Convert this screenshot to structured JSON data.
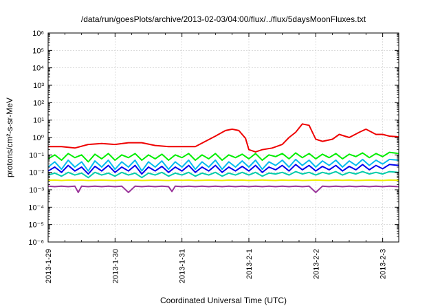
{
  "chart_data": {
    "type": "line",
    "title": "/data/run/goesPlots/archive/2013-02-03/04:00/flux/../flux/5daysMoonFluxes.txt",
    "xlabel": "Coordinated Universal Time (UTC)",
    "ylabel": "protons/cm²-s-sr-MeV",
    "y_scale": "log",
    "ylim": [
      1e-06,
      1000000.0
    ],
    "xlim": [
      0,
      5.24
    ],
    "x_ticks": [
      {
        "value": 0,
        "label": "2013-1-29"
      },
      {
        "value": 1,
        "label": "2013-1-30"
      },
      {
        "value": 2,
        "label": "2013-1-31"
      },
      {
        "value": 3,
        "label": "2013-2-1"
      },
      {
        "value": 4,
        "label": "2013-2-2"
      },
      {
        "value": 5,
        "label": "2013-2-3"
      }
    ],
    "y_ticks": [
      {
        "value": -6,
        "label": "10⁻⁶"
      },
      {
        "value": -5,
        "label": "10⁻⁵"
      },
      {
        "value": -4,
        "label": "10⁻⁴"
      },
      {
        "value": -3,
        "label": "10⁻³"
      },
      {
        "value": -2,
        "label": "10⁻²"
      },
      {
        "value": -1,
        "label": "10⁻¹"
      },
      {
        "value": 0,
        "label": "10⁰"
      },
      {
        "value": 1,
        "label": "10¹"
      },
      {
        "value": 2,
        "label": "10²"
      },
      {
        "value": 3,
        "label": "10³"
      },
      {
        "value": 4,
        "label": "10⁴"
      },
      {
        "value": 5,
        "label": "10⁵"
      },
      {
        "value": 6,
        "label": "10⁶"
      }
    ],
    "grid": true,
    "series": [
      {
        "color": "#ee0000",
        "x": [
          0,
          0.2,
          0.4,
          0.6,
          0.8,
          1.0,
          1.2,
          1.4,
          1.6,
          1.8,
          2.0,
          2.2,
          2.35,
          2.5,
          2.65,
          2.75,
          2.85,
          2.95,
          3.0,
          3.1,
          3.2,
          3.35,
          3.5,
          3.6,
          3.7,
          3.8,
          3.9,
          4.0,
          4.1,
          4.25,
          4.35,
          4.5,
          4.65,
          4.75,
          4.9,
          5.0,
          5.1,
          5.24
        ],
        "values": [
          0.3,
          0.3,
          0.25,
          0.4,
          0.45,
          0.4,
          0.5,
          0.5,
          0.35,
          0.3,
          0.3,
          0.3,
          0.6,
          1.2,
          2.5,
          3.0,
          2.5,
          0.9,
          0.2,
          0.15,
          0.2,
          0.25,
          0.4,
          1.0,
          2.0,
          6.0,
          5.0,
          0.8,
          0.6,
          0.8,
          1.5,
          1.0,
          2.0,
          3.0,
          1.5,
          1.5,
          1.2,
          1.1
        ]
      },
      {
        "color": "#00ee00",
        "x": [
          0,
          0.1,
          0.2,
          0.3,
          0.4,
          0.5,
          0.6,
          0.7,
          0.8,
          0.9,
          1.0,
          1.1,
          1.2,
          1.3,
          1.4,
          1.5,
          1.6,
          1.7,
          1.8,
          1.9,
          2.0,
          2.1,
          2.2,
          2.3,
          2.4,
          2.5,
          2.6,
          2.7,
          2.8,
          2.9,
          3.0,
          3.1,
          3.2,
          3.3,
          3.4,
          3.5,
          3.6,
          3.7,
          3.8,
          3.9,
          4.0,
          4.1,
          4.2,
          4.3,
          4.4,
          4.5,
          4.6,
          4.7,
          4.8,
          4.9,
          5.0,
          5.1,
          5.24
        ],
        "values": [
          0.06,
          0.1,
          0.05,
          0.12,
          0.07,
          0.1,
          0.04,
          0.11,
          0.06,
          0.12,
          0.05,
          0.1,
          0.07,
          0.12,
          0.05,
          0.1,
          0.06,
          0.11,
          0.05,
          0.1,
          0.07,
          0.12,
          0.05,
          0.1,
          0.06,
          0.12,
          0.05,
          0.1,
          0.07,
          0.11,
          0.06,
          0.12,
          0.05,
          0.1,
          0.08,
          0.12,
          0.06,
          0.13,
          0.07,
          0.12,
          0.06,
          0.11,
          0.07,
          0.12,
          0.06,
          0.11,
          0.08,
          0.13,
          0.07,
          0.12,
          0.08,
          0.14,
          0.12
        ]
      },
      {
        "color": "#00bbee",
        "x": [
          0,
          0.1,
          0.2,
          0.3,
          0.4,
          0.5,
          0.6,
          0.7,
          0.8,
          0.9,
          1.0,
          1.1,
          1.2,
          1.3,
          1.4,
          1.5,
          1.6,
          1.7,
          1.8,
          1.9,
          2.0,
          2.1,
          2.2,
          2.3,
          2.4,
          2.5,
          2.6,
          2.7,
          2.8,
          2.9,
          3.0,
          3.1,
          3.2,
          3.3,
          3.4,
          3.5,
          3.6,
          3.7,
          3.8,
          3.9,
          4.0,
          4.1,
          4.2,
          4.3,
          4.4,
          4.5,
          4.6,
          4.7,
          4.8,
          4.9,
          5.0,
          5.1,
          5.24
        ],
        "values": [
          0.02,
          0.04,
          0.015,
          0.05,
          0.02,
          0.04,
          0.012,
          0.045,
          0.02,
          0.05,
          0.015,
          0.04,
          0.02,
          0.05,
          0.012,
          0.04,
          0.02,
          0.045,
          0.015,
          0.04,
          0.02,
          0.05,
          0.015,
          0.04,
          0.02,
          0.05,
          0.015,
          0.04,
          0.02,
          0.045,
          0.02,
          0.05,
          0.015,
          0.04,
          0.025,
          0.05,
          0.02,
          0.055,
          0.025,
          0.05,
          0.02,
          0.045,
          0.025,
          0.05,
          0.02,
          0.045,
          0.025,
          0.055,
          0.025,
          0.05,
          0.03,
          0.055,
          0.05
        ]
      },
      {
        "color": "#0000ee",
        "x": [
          0,
          0.1,
          0.2,
          0.3,
          0.4,
          0.5,
          0.6,
          0.7,
          0.8,
          0.9,
          1.0,
          1.1,
          1.2,
          1.3,
          1.4,
          1.5,
          1.6,
          1.7,
          1.8,
          1.9,
          2.0,
          2.1,
          2.2,
          2.3,
          2.4,
          2.5,
          2.6,
          2.7,
          2.8,
          2.9,
          3.0,
          3.1,
          3.2,
          3.3,
          3.4,
          3.5,
          3.6,
          3.7,
          3.8,
          3.9,
          4.0,
          4.1,
          4.2,
          4.3,
          4.4,
          4.5,
          4.6,
          4.7,
          4.8,
          4.9,
          5.0,
          5.1,
          5.24
        ],
        "values": [
          0.012,
          0.02,
          0.01,
          0.025,
          0.012,
          0.02,
          0.008,
          0.022,
          0.012,
          0.025,
          0.01,
          0.02,
          0.012,
          0.025,
          0.008,
          0.02,
          0.012,
          0.022,
          0.01,
          0.02,
          0.012,
          0.025,
          0.01,
          0.02,
          0.012,
          0.025,
          0.01,
          0.02,
          0.012,
          0.022,
          0.012,
          0.025,
          0.01,
          0.02,
          0.014,
          0.025,
          0.012,
          0.028,
          0.014,
          0.025,
          0.012,
          0.022,
          0.014,
          0.025,
          0.012,
          0.022,
          0.014,
          0.028,
          0.014,
          0.025,
          0.016,
          0.028,
          0.025
        ]
      },
      {
        "color": "#00ccaa",
        "x": [
          0,
          0.1,
          0.2,
          0.3,
          0.4,
          0.5,
          0.6,
          0.7,
          0.8,
          0.9,
          1.0,
          1.1,
          1.2,
          1.3,
          1.4,
          1.5,
          1.6,
          1.7,
          1.8,
          1.9,
          2.0,
          2.1,
          2.2,
          2.3,
          2.4,
          2.5,
          2.6,
          2.7,
          2.8,
          2.9,
          3.0,
          3.1,
          3.2,
          3.3,
          3.4,
          3.5,
          3.6,
          3.7,
          3.8,
          3.9,
          4.0,
          4.1,
          4.2,
          4.3,
          4.4,
          4.5,
          4.6,
          4.7,
          4.8,
          4.9,
          5.0,
          5.1,
          5.24
        ],
        "values": [
          0.007,
          0.009,
          0.006,
          0.01,
          0.007,
          0.009,
          0.005,
          0.01,
          0.007,
          0.009,
          0.006,
          0.01,
          0.007,
          0.009,
          0.005,
          0.009,
          0.007,
          0.01,
          0.006,
          0.009,
          0.007,
          0.01,
          0.006,
          0.009,
          0.007,
          0.01,
          0.006,
          0.009,
          0.007,
          0.01,
          0.007,
          0.01,
          0.006,
          0.009,
          0.008,
          0.01,
          0.007,
          0.011,
          0.008,
          0.01,
          0.007,
          0.01,
          0.008,
          0.011,
          0.007,
          0.01,
          0.008,
          0.011,
          0.008,
          0.01,
          0.008,
          0.011,
          0.01
        ]
      },
      {
        "color": "#eeee00",
        "x": [
          0,
          0.1,
          0.2,
          0.3,
          0.4,
          0.5,
          0.6,
          0.7,
          0.8,
          0.9,
          1.0,
          1.1,
          1.2,
          1.3,
          1.4,
          1.5,
          1.6,
          1.7,
          1.8,
          1.9,
          2.0,
          2.1,
          2.2,
          2.3,
          2.4,
          2.5,
          2.6,
          2.7,
          2.8,
          2.9,
          3.0,
          3.1,
          3.2,
          3.3,
          3.4,
          3.5,
          3.6,
          3.7,
          3.8,
          3.9,
          4.0,
          4.1,
          4.2,
          4.3,
          4.4,
          4.5,
          4.6,
          4.7,
          4.8,
          4.9,
          5.0,
          5.1,
          5.24
        ],
        "values": [
          0.0035,
          0.0036,
          0.0034,
          0.0036,
          0.0035,
          0.0036,
          0.0034,
          0.0035,
          0.0036,
          0.0035,
          0.0034,
          0.0036,
          0.0035,
          0.0036,
          0.0034,
          0.0035,
          0.0036,
          0.0035,
          0.0034,
          0.0036,
          0.0035,
          0.0036,
          0.0034,
          0.0035,
          0.0036,
          0.0035,
          0.0034,
          0.0036,
          0.0035,
          0.0036,
          0.0034,
          0.0035,
          0.0036,
          0.0035,
          0.0034,
          0.0036,
          0.0035,
          0.0036,
          0.0034,
          0.0035,
          0.0036,
          0.0035,
          0.0034,
          0.0036,
          0.0035,
          0.0036,
          0.0034,
          0.0035,
          0.0036,
          0.0035,
          0.0034,
          0.0036,
          0.0035
        ]
      },
      {
        "color": "#993399",
        "x": [
          0,
          0.1,
          0.2,
          0.3,
          0.4,
          0.45,
          0.5,
          0.6,
          0.7,
          0.8,
          0.9,
          1.0,
          1.1,
          1.2,
          1.3,
          1.4,
          1.5,
          1.6,
          1.7,
          1.8,
          1.85,
          1.9,
          2.0,
          2.1,
          2.2,
          2.3,
          2.4,
          2.5,
          2.6,
          2.7,
          2.8,
          2.9,
          3.0,
          3.1,
          3.2,
          3.3,
          3.4,
          3.5,
          3.6,
          3.7,
          3.8,
          3.9,
          4.0,
          4.1,
          4.2,
          4.3,
          4.4,
          4.5,
          4.6,
          4.7,
          4.8,
          4.9,
          5.0,
          5.1,
          5.24
        ],
        "values": [
          0.0016,
          0.0015,
          0.0016,
          0.0015,
          0.0016,
          0.0007,
          0.0016,
          0.0015,
          0.0016,
          0.0015,
          0.0016,
          0.0015,
          0.0016,
          0.0007,
          0.0016,
          0.0015,
          0.0016,
          0.0015,
          0.0016,
          0.0015,
          0.0008,
          0.0016,
          0.0015,
          0.0016,
          0.0015,
          0.0016,
          0.0015,
          0.0016,
          0.0015,
          0.0016,
          0.0015,
          0.0016,
          0.0015,
          0.0016,
          0.0015,
          0.0016,
          0.0015,
          0.0016,
          0.0015,
          0.0016,
          0.0015,
          0.0016,
          0.0007,
          0.0016,
          0.0015,
          0.0016,
          0.0015,
          0.0016,
          0.0015,
          0.0016,
          0.0015,
          0.0016,
          0.0015,
          0.0016,
          0.0015
        ]
      }
    ]
  }
}
